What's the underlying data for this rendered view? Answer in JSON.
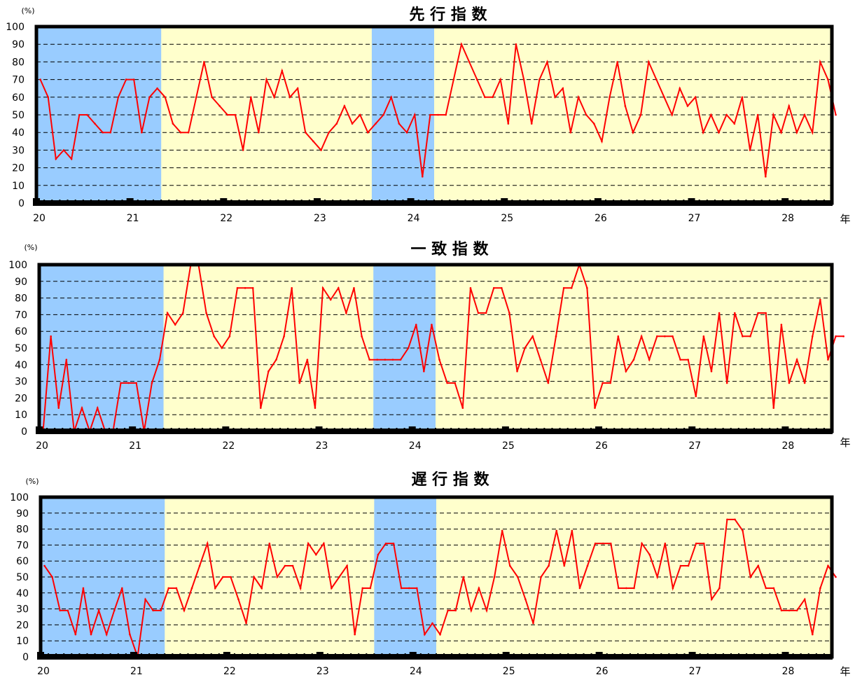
{
  "colors": {
    "background": "#ffffcc",
    "recession": "#99ccff",
    "line": "#ff0000",
    "grid": "#000000",
    "frame": "#000000"
  },
  "chart_data": [
    {
      "type": "line",
      "title": "先 行 指 数",
      "ylabel": "(%)",
      "x_unit": "年",
      "ylim": [
        0,
        100
      ],
      "yticks": [
        "0",
        "10",
        "20",
        "30",
        "40",
        "50",
        "60",
        "70",
        "80",
        "90",
        "100"
      ],
      "xticks": [
        "20",
        "21",
        "22",
        "23",
        "24",
        "25",
        "26",
        "27",
        "28"
      ],
      "xtick_positions": [
        0,
        12,
        24,
        36,
        48,
        60,
        72,
        84,
        96
      ],
      "xlim": [
        0,
        102
      ],
      "grid": "dashed horizontal",
      "shaded_ranges": [
        [
          0,
          16
        ],
        [
          43,
          51
        ]
      ],
      "series": [
        {
          "values": [
            70,
            60,
            25,
            30,
            25,
            50,
            50,
            45,
            40,
            40,
            60,
            70,
            70,
            40,
            60,
            65,
            60,
            45,
            40,
            40,
            60,
            80,
            60,
            55,
            50,
            50,
            30,
            60,
            40,
            70,
            60,
            75,
            60,
            65,
            40,
            35,
            30,
            40,
            45,
            55,
            45,
            50,
            40,
            45,
            50,
            60,
            45,
            40,
            50,
            15,
            50,
            50,
            50,
            70,
            90,
            80,
            70,
            60,
            60,
            70,
            45,
            90,
            70,
            45,
            70,
            80,
            60,
            65,
            40,
            60,
            50,
            45,
            35,
            60,
            80,
            55,
            40,
            50,
            80,
            70,
            60,
            50,
            65,
            55,
            60,
            40,
            50,
            40,
            50,
            45,
            60,
            30,
            50,
            15,
            50,
            40,
            55,
            40,
            50,
            40,
            80,
            70,
            50
          ]
        }
      ]
    },
    {
      "type": "line",
      "title": "一 致 指 数",
      "ylabel": "(%)",
      "x_unit": "年",
      "ylim": [
        0,
        100
      ],
      "yticks": [
        "0",
        "10",
        "20",
        "30",
        "40",
        "50",
        "60",
        "70",
        "80",
        "90",
        "100"
      ],
      "xticks": [
        "20",
        "21",
        "22",
        "23",
        "24",
        "25",
        "26",
        "27",
        "28"
      ],
      "xtick_positions": [
        0,
        12,
        24,
        36,
        48,
        60,
        72,
        84,
        96
      ],
      "xlim": [
        0,
        102
      ],
      "grid": "dashed horizontal",
      "shaded_ranges": [
        [
          0,
          16
        ],
        [
          43,
          51
        ]
      ],
      "series": [
        {
          "values": [
            0,
            57,
            14,
            43,
            0,
            14,
            0,
            14,
            0,
            0,
            29,
            29,
            29,
            0,
            29,
            43,
            71,
            64,
            71,
            100,
            100,
            71,
            57,
            50,
            57,
            86,
            86,
            86,
            14,
            36,
            43,
            57,
            86,
            29,
            43,
            14,
            86,
            79,
            86,
            71,
            86,
            57,
            43,
            43,
            43,
            43,
            43,
            50,
            64,
            36,
            64,
            43,
            29,
            29,
            14,
            86,
            71,
            71,
            86,
            86,
            71,
            36,
            50,
            57,
            43,
            29,
            57,
            86,
            86,
            100,
            86,
            14,
            29,
            29,
            57,
            36,
            43,
            57,
            43,
            57,
            57,
            57,
            43,
            43,
            21,
            57,
            36,
            71,
            29,
            71,
            57,
            57,
            71,
            71,
            14,
            64,
            29,
            43,
            29,
            57,
            79,
            43,
            57,
            57
          ]
        }
      ]
    },
    {
      "type": "line",
      "title": "遅 行 指 数",
      "ylabel": "(%)",
      "x_unit": "年",
      "ylim": [
        0,
        100
      ],
      "yticks": [
        "0",
        "10",
        "20",
        "30",
        "40",
        "50",
        "60",
        "70",
        "80",
        "90",
        "100"
      ],
      "xticks": [
        "20",
        "21",
        "22",
        "23",
        "24",
        "25",
        "26",
        "27",
        "28"
      ],
      "xtick_positions": [
        0,
        12,
        24,
        36,
        48,
        60,
        72,
        84,
        96
      ],
      "xlim": [
        0,
        102
      ],
      "grid": "dashed horizontal",
      "shaded_ranges": [
        [
          0,
          16
        ],
        [
          43,
          51
        ]
      ],
      "series": [
        {
          "values": [
            57,
            50,
            29,
            29,
            14,
            43,
            14,
            29,
            14,
            29,
            43,
            14,
            0,
            36,
            29,
            29,
            43,
            43,
            29,
            43,
            57,
            71,
            43,
            50,
            50,
            36,
            21,
            50,
            43,
            71,
            50,
            57,
            57,
            43,
            71,
            64,
            71,
            43,
            50,
            57,
            14,
            43,
            43,
            64,
            71,
            71,
            43,
            43,
            43,
            14,
            21,
            14,
            29,
            29,
            50,
            29,
            43,
            29,
            50,
            79,
            57,
            50,
            36,
            21,
            50,
            57,
            79,
            57,
            79,
            43,
            57,
            71,
            71,
            71,
            43,
            43,
            43,
            71,
            64,
            50,
            71,
            43,
            57,
            57,
            71,
            71,
            36,
            43,
            86,
            86,
            79,
            50,
            57,
            43,
            43,
            29,
            29,
            29,
            36,
            14,
            43,
            57,
            50
          ]
        }
      ]
    }
  ]
}
